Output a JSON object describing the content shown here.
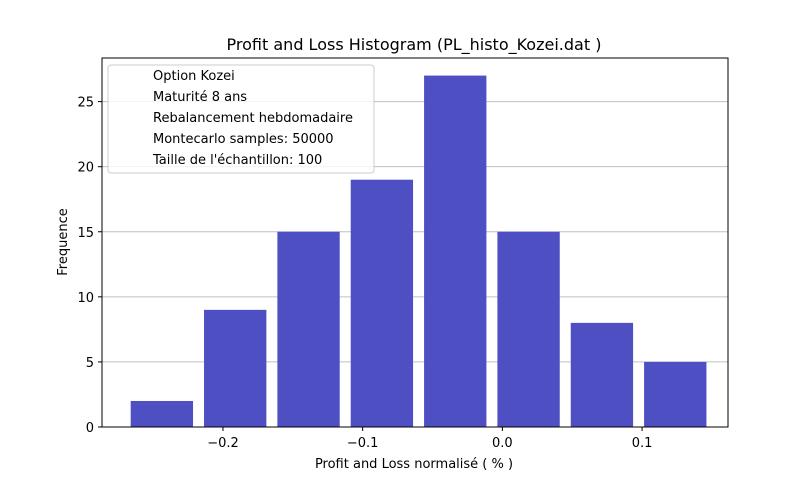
{
  "chart_data": {
    "type": "bar",
    "title": "Profit and Loss Histogram   (PL_histo_Kozei.dat )",
    "xlabel": "Profit and Loss normalisé ( % )",
    "ylabel": "Frequence",
    "bin_edges": [
      -0.27,
      -0.2175,
      -0.165,
      -0.1125,
      -0.06,
      -0.0075,
      0.045,
      0.0975,
      0.15
    ],
    "bar_width_fraction": 0.85,
    "values": [
      2,
      9,
      15,
      19,
      27,
      15,
      8,
      5
    ],
    "xlim": [
      -0.2866,
      0.1615
    ],
    "ylim": [
      0,
      28.35
    ],
    "xticks": [
      -0.2,
      -0.1,
      0.0,
      0.1
    ],
    "xtick_labels": [
      "−0.2",
      "−0.1",
      "0.0",
      "0.1"
    ],
    "yticks": [
      0,
      5,
      10,
      15,
      20,
      25
    ],
    "ytick_labels": [
      "0",
      "5",
      "10",
      "15",
      "20",
      "25"
    ],
    "bar_color": "#4f4fc4",
    "grid": "y",
    "grid_color": "#c0c0c0",
    "legend_position": "upper-left",
    "legend_entries": [
      "Option Kozei",
      "Maturité 8 ans",
      "Rebalancement hebdomadaire",
      "Montecarlo samples: 50000",
      "Taille de l'échantillon: 100"
    ]
  }
}
